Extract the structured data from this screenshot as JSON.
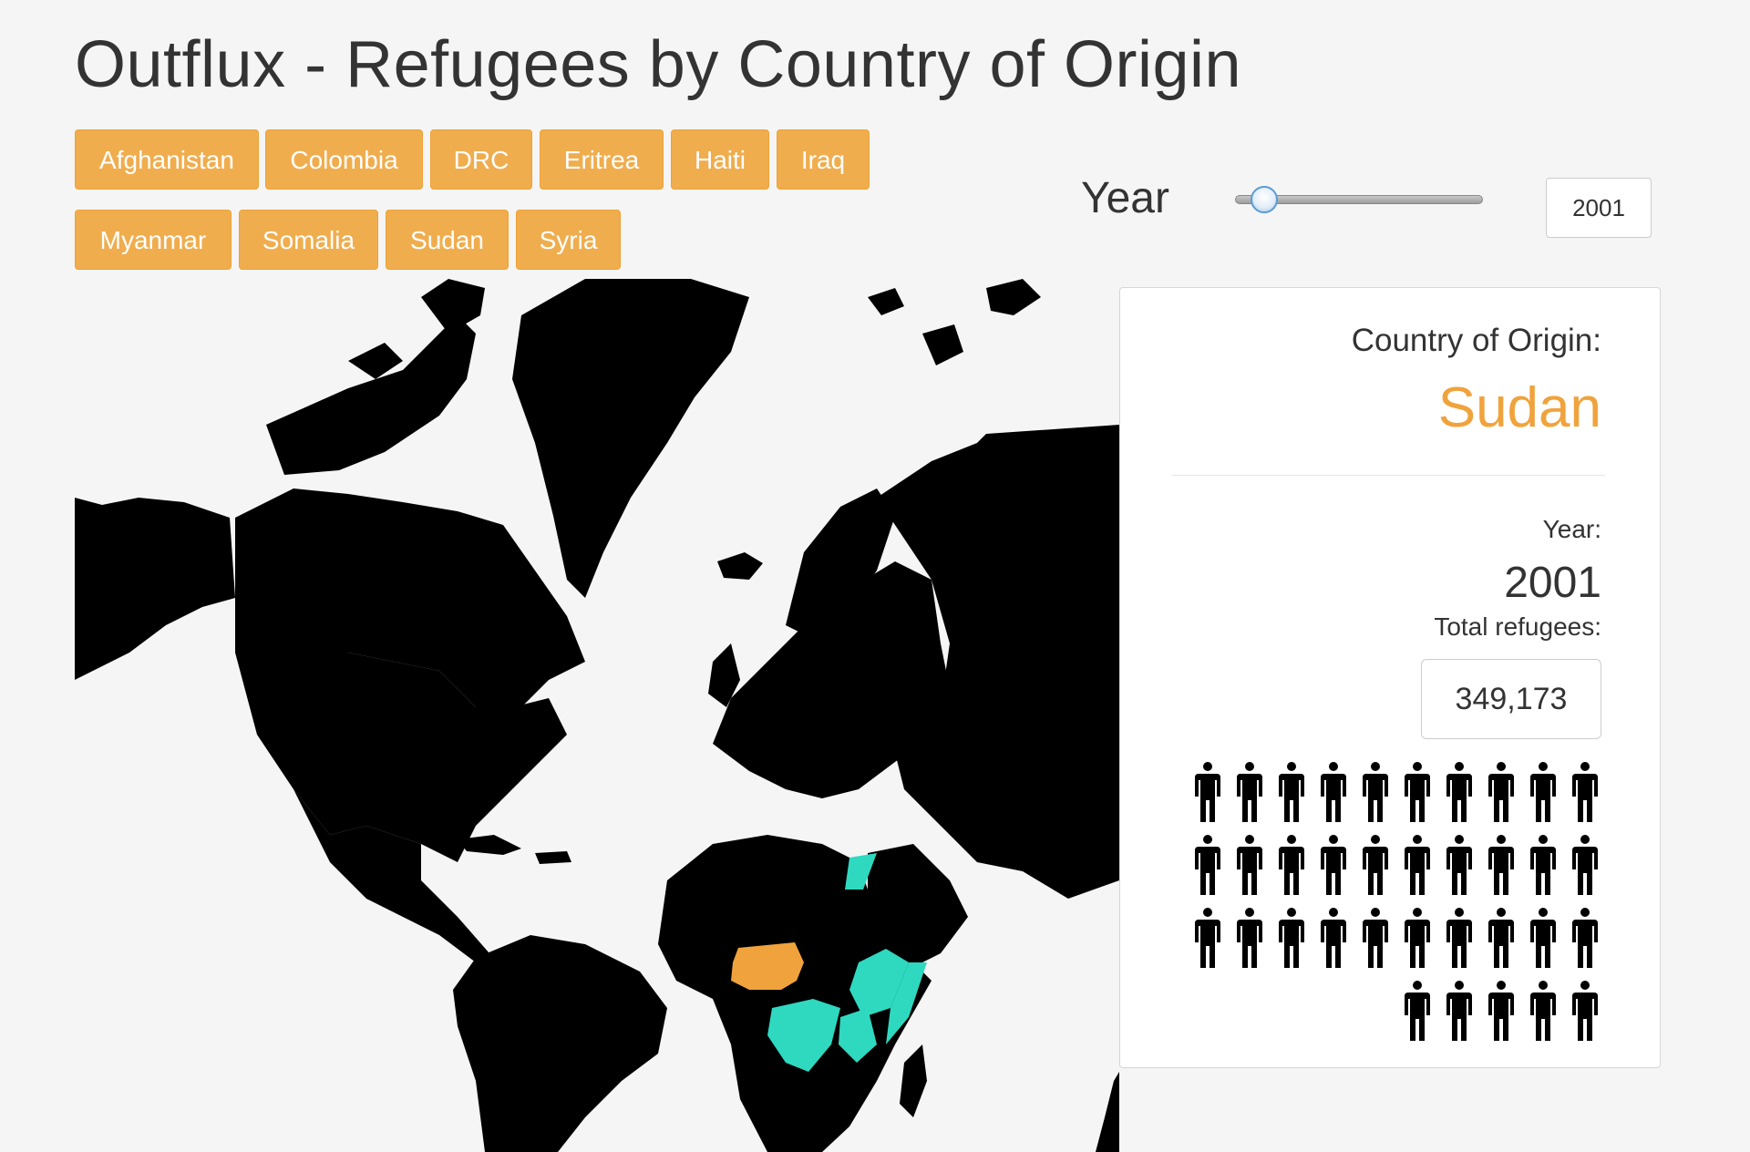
{
  "page": {
    "title": "Outflux - Refugees by Country of Origin"
  },
  "countries": [
    {
      "label": "Afghanistan"
    },
    {
      "label": "Colombia"
    },
    {
      "label": "DRC"
    },
    {
      "label": "Eritrea"
    },
    {
      "label": "Haiti"
    },
    {
      "label": "Iraq"
    },
    {
      "label": "Myanmar"
    },
    {
      "label": "Somalia"
    },
    {
      "label": "Sudan"
    },
    {
      "label": "Syria"
    }
  ],
  "year_control": {
    "label": "Year",
    "value": "2001"
  },
  "info": {
    "origin_label": "Country of Origin:",
    "origin_value": "Sudan",
    "year_label": "Year:",
    "year_value": "2001",
    "total_label": "Total refugees:",
    "total_value": "349,173"
  },
  "map": {
    "land_color": "#000000",
    "background_color": "#f5f5f5",
    "origin_color": "#f0a33c",
    "destination_color": "#2ed9c0",
    "highlighted_origin": "Sudan",
    "highlighted_destinations": [
      "Egypt",
      "Ethiopia",
      "Kenya",
      "Uganda",
      "DRC",
      "Eritrea",
      "Israel"
    ]
  },
  "people_icons": {
    "count": 35,
    "icon": "person-icon"
  }
}
